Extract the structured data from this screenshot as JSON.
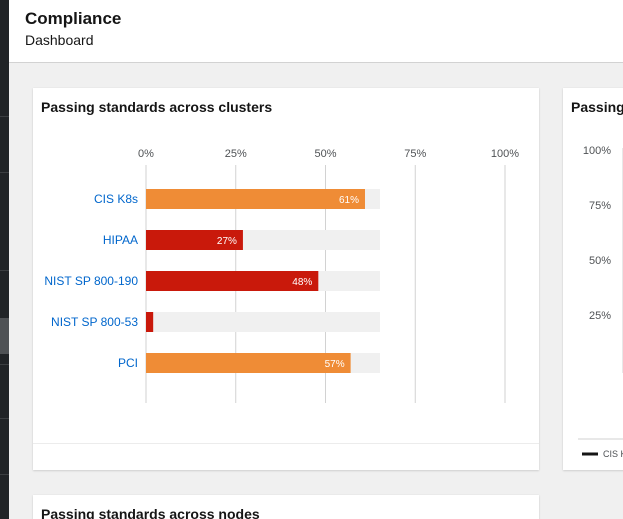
{
  "header": {
    "title": "Compliance",
    "subtitle": "Dashboard"
  },
  "cards": {
    "clusters": {
      "title": "Passing standards across clusters"
    },
    "second": {
      "title": "Passing",
      "legend_label": "CIS K"
    },
    "nodes": {
      "title": "Passing standards across nodes"
    }
  },
  "colors": {
    "high": "#ef8c36",
    "low": "#c9190b",
    "track": "#f0f0f0",
    "label_link": "#0066cc"
  },
  "chart_data": [
    {
      "type": "bar",
      "orientation": "horizontal",
      "title": "Passing standards across clusters",
      "categories": [
        "CIS K8s",
        "HIPAA",
        "NIST SP 800-190",
        "NIST SP 800-53",
        "PCI"
      ],
      "values": [
        61,
        27,
        48,
        2,
        57
      ],
      "data_labels": [
        "61%",
        "27%",
        "48%",
        "",
        "57%"
      ],
      "xlim": [
        0,
        100
      ],
      "ticks": [
        "0%",
        "25%",
        "50%",
        "75%",
        "100%"
      ],
      "grid": true
    },
    {
      "type": "line",
      "title": "Passing",
      "yticks": [
        "100%",
        "75%",
        "50%",
        "25%"
      ],
      "legend": [
        "CIS K"
      ]
    }
  ]
}
